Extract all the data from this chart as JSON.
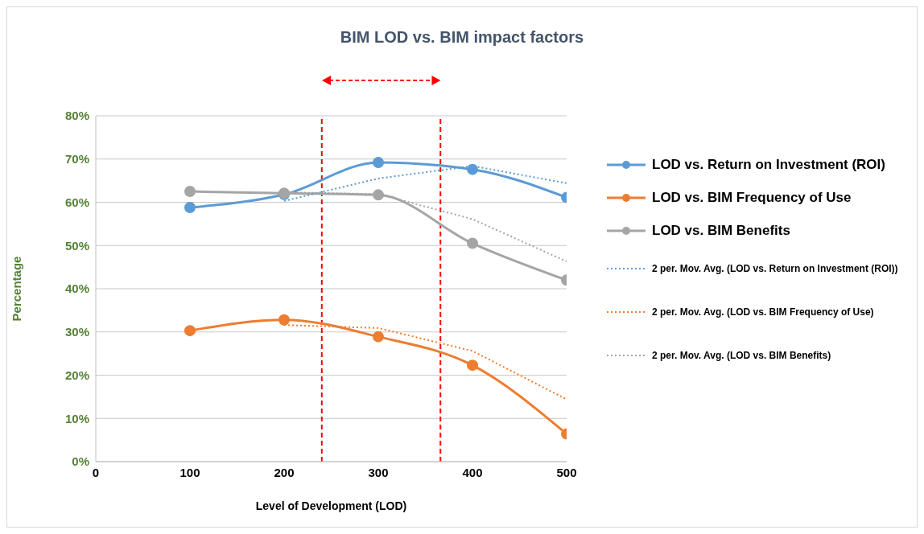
{
  "chart_data": {
    "type": "line",
    "title": "BIM LOD vs. BIM impact factors",
    "xlabel": "Level of Development (LOD)",
    "ylabel": "Percentage",
    "x": [
      100,
      200,
      300,
      400,
      500
    ],
    "series": [
      {
        "name": "LOD vs. Return on Investment (ROI)",
        "color": "#5b9bd5",
        "values": [
          58.8,
          61.8,
          69.2,
          67.6,
          61.1
        ],
        "marker": "circle",
        "line_style": "solid"
      },
      {
        "name": "LOD vs. BIM Frequency of Use",
        "color": "#ed7d31",
        "values": [
          30.3,
          32.8,
          28.9,
          22.3,
          6.4
        ],
        "marker": "circle",
        "line_style": "solid"
      },
      {
        "name": "LOD vs. BIM Benefits",
        "color": "#a5a5a5",
        "values": [
          62.5,
          62.1,
          61.7,
          50.5,
          42.0
        ],
        "marker": "circle",
        "line_style": "solid"
      },
      {
        "name": "2 per. Mov. Avg. (LOD vs. Return on Investment (ROI))",
        "color": "#5b9bd5",
        "x": [
          200,
          300,
          400,
          500
        ],
        "values": [
          60.3,
          65.5,
          68.4,
          64.4
        ],
        "marker": "none",
        "line_style": "dotted"
      },
      {
        "name": "2 per. Mov. Avg. (LOD vs. BIM Frequency of Use)",
        "color": "#ed7d31",
        "x": [
          200,
          300,
          400,
          500
        ],
        "values": [
          31.6,
          30.9,
          25.6,
          14.4
        ],
        "marker": "none",
        "line_style": "dotted"
      },
      {
        "name": "2 per. Mov. Avg. (LOD vs. BIM Benefits)",
        "color": "#a5a5a5",
        "x": [
          200,
          300,
          400,
          500
        ],
        "values": [
          62.3,
          61.9,
          56.1,
          46.3
        ],
        "marker": "none",
        "line_style": "dotted"
      }
    ],
    "xlim": [
      0,
      500
    ],
    "xticks": [
      0,
      100,
      200,
      300,
      400,
      500
    ],
    "ylim": [
      0,
      80
    ],
    "yticks": [
      {
        "value": 0,
        "label": "0%"
      },
      {
        "value": 10,
        "label": "10%"
      },
      {
        "value": 20,
        "label": "20%"
      },
      {
        "value": 30,
        "label": "30%"
      },
      {
        "value": 40,
        "label": "40%"
      },
      {
        "value": 50,
        "label": "50%"
      },
      {
        "value": 60,
        "label": "60%"
      },
      {
        "value": 70,
        "label": "70%"
      },
      {
        "value": 80,
        "label": "80%"
      }
    ],
    "ref_lines": [
      {
        "axis": "x",
        "value": 240,
        "color": "#ff0000",
        "line_style": "dashed"
      },
      {
        "axis": "x",
        "value": 366,
        "color": "#ff0000",
        "line_style": "dashed"
      }
    ],
    "grid": "y",
    "legend": "right"
  }
}
